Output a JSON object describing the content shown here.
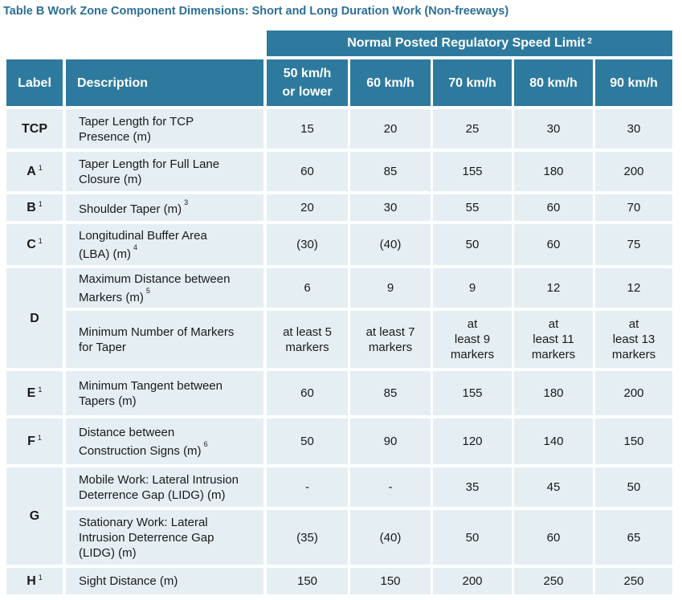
{
  "title": "Table B  Work Zone Component Dimensions: Short and Long Duration Work (Non-freeways)",
  "super_header": {
    "label": "Normal Posted Regulatory Speed Limit",
    "note": "2"
  },
  "columns": {
    "label": "Label",
    "description": "Description",
    "speeds": [
      "50 km/h or lower",
      "60 km/h",
      "70 km/h",
      "80 km/h",
      "90 km/h"
    ]
  },
  "rows": [
    {
      "label": "TCP",
      "label_note": "",
      "desc": "Taper Length for TCP Presence (m)",
      "desc_note": "",
      "values": [
        "15",
        "20",
        "25",
        "30",
        "30"
      ]
    },
    {
      "label": "A",
      "label_note": "1",
      "desc": "Taper Length for Full Lane Closure (m)",
      "desc_note": "",
      "values": [
        "60",
        "85",
        "155",
        "180",
        "200"
      ]
    },
    {
      "label": "B",
      "label_note": "1",
      "desc": "Shoulder Taper (m)",
      "desc_note": "3",
      "values": [
        "20",
        "30",
        "55",
        "60",
        "70"
      ]
    },
    {
      "label": "C",
      "label_note": "1",
      "desc": "Longitudinal Buffer Area (LBA) (m)",
      "desc_note": "4",
      "values": [
        "(30)",
        "(40)",
        "50",
        "60",
        "75"
      ]
    },
    {
      "label": "D",
      "label_note": "",
      "desc": "Maximum Distance between Markers (m)",
      "desc_note": "5",
      "values": [
        "6",
        "9",
        "9",
        "12",
        "12"
      ]
    },
    {
      "label": "",
      "label_note": "",
      "desc": "Minimum Number of Markers for Taper",
      "desc_note": "",
      "values": [
        "at least 5 markers",
        "at least 7 markers",
        "at least 9 markers",
        "at least 11 markers",
        "at least 13 markers"
      ]
    },
    {
      "label": "E",
      "label_note": "1",
      "desc": "Minimum Tangent between Tapers (m)",
      "desc_note": "",
      "values": [
        "60",
        "85",
        "155",
        "180",
        "200"
      ]
    },
    {
      "label": "F",
      "label_note": "1",
      "desc": "Distance between Construction Signs (m)",
      "desc_note": "6",
      "values": [
        "50",
        "90",
        "120",
        "140",
        "150"
      ]
    },
    {
      "label": "G",
      "label_note": "",
      "desc": "Mobile Work: Lateral Intrusion Deterrence Gap (LIDG) (m)",
      "desc_note": "",
      "values": [
        "-",
        "-",
        "35",
        "45",
        "50"
      ]
    },
    {
      "label": "",
      "label_note": "",
      "desc": "Stationary Work: Lateral Intrusion Deterrence Gap (LIDG) (m)",
      "desc_note": "",
      "values": [
        "(35)",
        "(40)",
        "50",
        "60",
        "65"
      ]
    },
    {
      "label": "H",
      "label_note": "1",
      "desc": "Sight Distance (m)",
      "desc_note": "",
      "values": [
        "150",
        "150",
        "200",
        "250",
        "250"
      ]
    }
  ]
}
